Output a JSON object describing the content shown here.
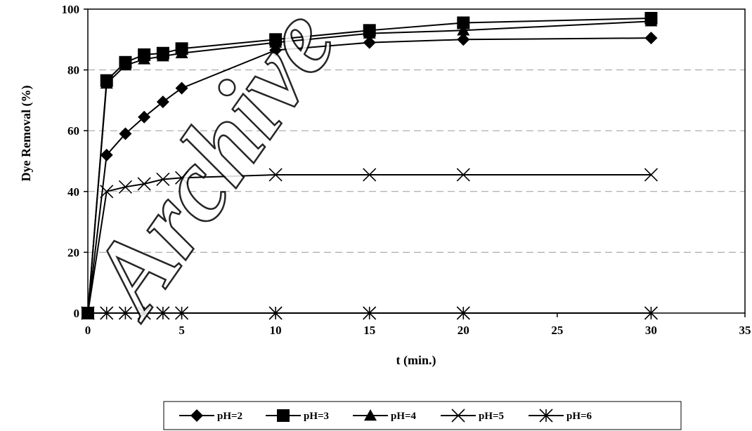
{
  "watermark": "Archive",
  "chart_data": {
    "type": "line",
    "title": "",
    "xlabel": "t (min.)",
    "ylabel": "Dye Removal (%)",
    "xlim": [
      0,
      35
    ],
    "ylim": [
      0,
      100
    ],
    "xticks": [
      0,
      5,
      10,
      15,
      20,
      25,
      30,
      35
    ],
    "yticks": [
      0,
      20,
      40,
      60,
      80,
      100
    ],
    "grid": "horizontal dashed",
    "legend_position": "bottom",
    "series": [
      {
        "name": "pH=2",
        "marker": "diamond",
        "x": [
          0,
          1,
          2,
          3,
          4,
          5,
          10,
          15,
          20,
          30
        ],
        "y": [
          0,
          52,
          59,
          64.5,
          69.5,
          74,
          86.5,
          89,
          90,
          90.5
        ]
      },
      {
        "name": "pH=3",
        "marker": "square",
        "x": [
          0,
          1,
          2,
          3,
          4,
          5,
          10,
          15,
          20,
          30
        ],
        "y": [
          0,
          76.5,
          82.5,
          85,
          85.5,
          87,
          90,
          93,
          95.5,
          97
        ]
      },
      {
        "name": "pH=4",
        "marker": "triangle",
        "x": [
          0,
          1,
          2,
          3,
          4,
          5,
          10,
          15,
          20,
          30
        ],
        "y": [
          0,
          75.5,
          81.5,
          83.5,
          84.5,
          85.5,
          89,
          92,
          93,
          96
        ]
      },
      {
        "name": "pH=5",
        "marker": "x",
        "x": [
          0,
          1,
          2,
          3,
          4,
          5,
          10,
          15,
          20,
          30
        ],
        "y": [
          0,
          40,
          41.5,
          42.5,
          44,
          44.5,
          45.5,
          45.5,
          45.5,
          45.5
        ]
      },
      {
        "name": "pH=6",
        "marker": "asterisk",
        "x": [
          0,
          1,
          2,
          3,
          4,
          5,
          10,
          15,
          20,
          30
        ],
        "y": [
          0,
          0,
          0,
          0,
          0,
          0,
          0,
          0,
          0,
          0
        ]
      }
    ]
  }
}
